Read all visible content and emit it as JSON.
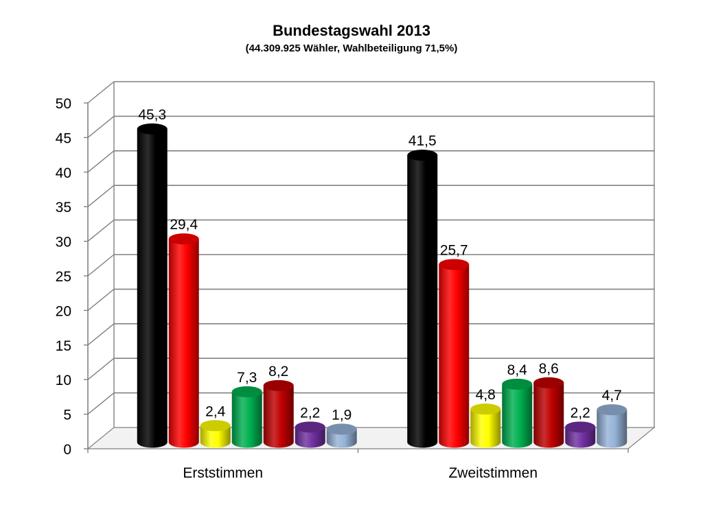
{
  "chart_data": {
    "type": "bar",
    "title": "Bundestagswahl 2013",
    "subtitle": "(44.309.925 Wähler, Wahlbeteiligung 71,5%)",
    "categories": [
      "Erststimmen",
      "Zweitstimmen"
    ],
    "ylim": [
      0,
      50
    ],
    "yticks": [
      "0",
      "5",
      "10",
      "15",
      "20",
      "25",
      "30",
      "35",
      "40",
      "45",
      "50"
    ],
    "grid": true,
    "legend": "none",
    "series": [
      {
        "color": "#000000",
        "values": [
          45.3,
          41.5
        ],
        "labels": [
          "45,3",
          "41,5"
        ]
      },
      {
        "color": "#ff0000",
        "values": [
          29.4,
          25.7
        ],
        "labels": [
          "29,4",
          "25,7"
        ]
      },
      {
        "color": "#ffff00",
        "values": [
          2.4,
          4.8
        ],
        "labels": [
          "2,4",
          "4,8"
        ]
      },
      {
        "color": "#00b050",
        "values": [
          7.3,
          8.4
        ],
        "labels": [
          "7,3",
          "8,4"
        ]
      },
      {
        "color": "#c00000",
        "values": [
          8.2,
          8.6
        ],
        "labels": [
          "8,2",
          "8,6"
        ]
      },
      {
        "color": "#7030a0",
        "values": [
          2.2,
          2.2
        ],
        "labels": [
          "2,2",
          "2,2"
        ]
      },
      {
        "color": "#95b3d7",
        "values": [
          1.9,
          4.7
        ],
        "labels": [
          "1,9",
          "4,7"
        ]
      }
    ]
  }
}
